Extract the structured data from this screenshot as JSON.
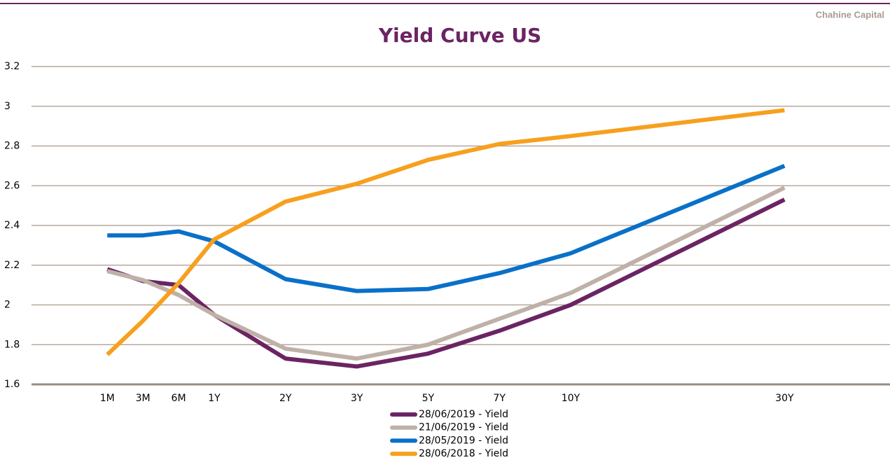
{
  "brand": "Chahine Capital",
  "chart_data": {
    "type": "line",
    "title": "Yield Curve US",
    "categories": [
      "1M",
      "3M",
      "6M",
      "1Y",
      "2Y",
      "3Y",
      "5Y",
      "7Y",
      "10Y",
      "30Y"
    ],
    "series": [
      {
        "name": "28/06/2019 - Yield",
        "color": "#6b2463",
        "values": [
          2.18,
          2.12,
          2.1,
          1.95,
          1.73,
          1.69,
          1.755,
          1.87,
          2.0,
          2.53
        ]
      },
      {
        "name": "21/06/2019 - Yield",
        "color": "#bfb1a8",
        "values": [
          2.17,
          2.125,
          2.05,
          1.95,
          1.78,
          1.73,
          1.8,
          1.93,
          2.06,
          2.59
        ]
      },
      {
        "name": "28/05/2019 - Yield",
        "color": "#0a70c8",
        "values": [
          2.35,
          2.35,
          2.37,
          2.32,
          2.13,
          2.07,
          2.08,
          2.16,
          2.26,
          2.7
        ]
      },
      {
        "name": "28/06/2018 - Yield",
        "color": "#f7a01e",
        "values": [
          1.75,
          1.92,
          2.11,
          2.33,
          2.52,
          2.61,
          2.73,
          2.81,
          2.85,
          2.98
        ]
      }
    ],
    "ylim": [
      1.6,
      3.2
    ],
    "yticks": [
      1.6,
      1.8,
      2,
      2.2,
      2.4,
      2.6,
      2.8,
      3,
      3.2
    ],
    "grid": true,
    "legend": "bottom"
  }
}
